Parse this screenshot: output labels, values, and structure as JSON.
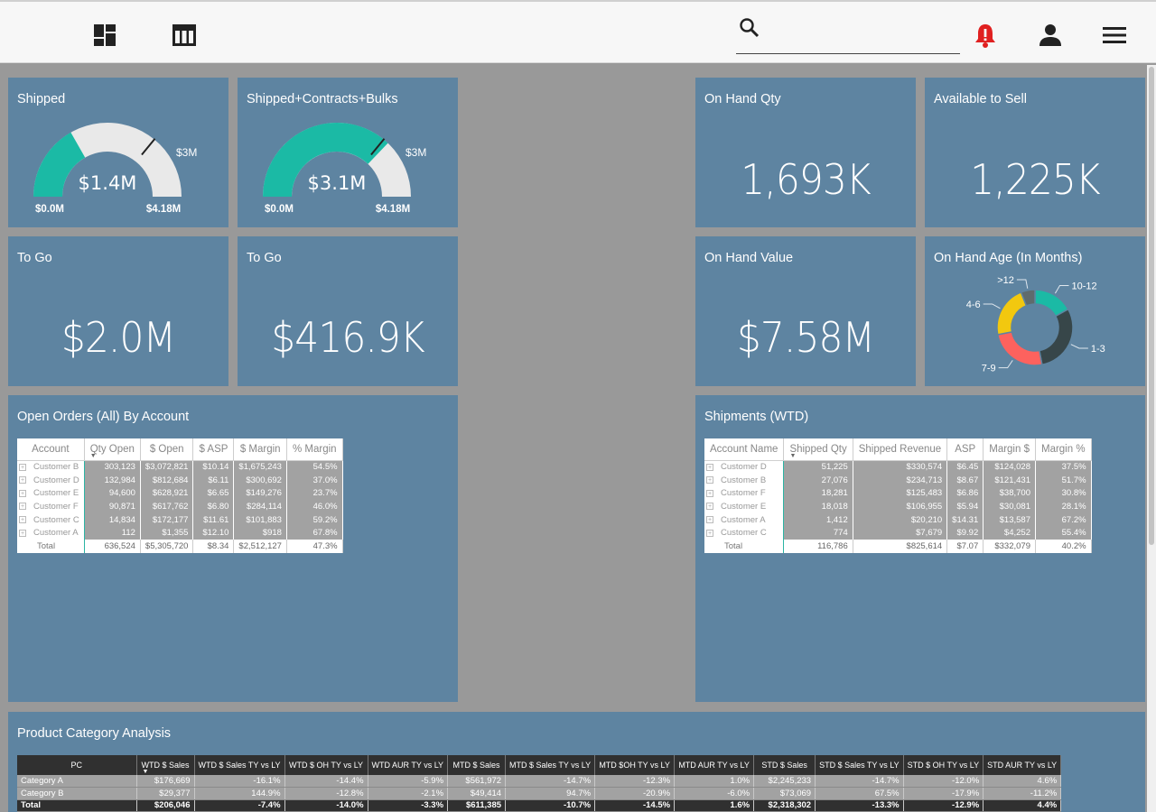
{
  "topbar": {
    "icons": [
      "dashboard-icon",
      "table-icon",
      "search-icon",
      "bell-alert-icon",
      "user-icon",
      "menu-icon"
    ],
    "search_placeholder": "",
    "alert_color": "#e02020"
  },
  "tiles": {
    "shipped": {
      "title": "Shipped",
      "value": "$1.4M",
      "target": "$3M",
      "min": "$0.0M",
      "max": "$4.18M",
      "fraction": 0.335,
      "target_fraction": 0.718
    },
    "shipped_contracts": {
      "title": "Shipped+Contracts+Bulks",
      "value": "$3.1M",
      "target": "$3M",
      "min": "$0.0M",
      "max": "$4.18M",
      "fraction": 0.742,
      "target_fraction": 0.718
    },
    "on_hand_qty": {
      "title": "On Hand Qty",
      "value": "1,693K"
    },
    "available_to_sell": {
      "title": "Available to Sell",
      "value": "1,225K"
    },
    "to_go_1": {
      "title": "To Go",
      "value": "$2.0M"
    },
    "to_go_2": {
      "title": "To Go",
      "value": "$416.9K"
    },
    "on_hand_value": {
      "title": "On Hand Value",
      "value": "$7.58M"
    },
    "on_hand_age": {
      "title": "On Hand Age (In Months)",
      "segments": [
        {
          "label": "10-12",
          "value": 17,
          "color": "#1bbaa5"
        },
        {
          "label": "1-3",
          "value": 30,
          "color": "#374649"
        },
        {
          "label": "7-9",
          "value": 25,
          "color": "#fd625e"
        },
        {
          "label": "4-6",
          "value": 22,
          "color": "#f2c80f"
        },
        {
          "label": ">12",
          "value": 6,
          "color": "#5f6b6d"
        }
      ]
    }
  },
  "open_orders": {
    "title": "Open Orders (All) By Account",
    "columns": [
      "Account",
      "Qty Open",
      "$ Open",
      "$ ASP",
      "$ Margin",
      "% Margin"
    ],
    "rows": [
      [
        "Customer B",
        "303,123",
        "$3,072,821",
        "$10.14",
        "$1,675,243",
        "54.5%"
      ],
      [
        "Customer D",
        "132,984",
        "$812,684",
        "$6.11",
        "$300,692",
        "37.0%"
      ],
      [
        "Customer E",
        "94,600",
        "$628,921",
        "$6.65",
        "$149,276",
        "23.7%"
      ],
      [
        "Customer F",
        "90,871",
        "$617,762",
        "$6.80",
        "$284,114",
        "46.0%"
      ],
      [
        "Customer C",
        "14,834",
        "$172,177",
        "$11.61",
        "$101,883",
        "59.2%"
      ],
      [
        "Customer A",
        "112",
        "$1,355",
        "$12.10",
        "$918",
        "67.8%"
      ]
    ],
    "total": [
      "Total",
      "636,524",
      "$5,305,720",
      "$8.34",
      "$2,512,127",
      "47.3%"
    ]
  },
  "shipments": {
    "title": "Shipments (WTD)",
    "columns": [
      "Account Name",
      "Shipped Qty",
      "Shipped Revenue",
      "ASP",
      "Margin $",
      "Margin %"
    ],
    "rows": [
      [
        "Customer D",
        "51,225",
        "$330,574",
        "$6.45",
        "$124,028",
        "37.5%"
      ],
      [
        "Customer B",
        "27,076",
        "$234,713",
        "$8.67",
        "$121,431",
        "51.7%"
      ],
      [
        "Customer F",
        "18,281",
        "$125,483",
        "$6.86",
        "$38,700",
        "30.8%"
      ],
      [
        "Customer E",
        "18,018",
        "$106,955",
        "$5.94",
        "$30,081",
        "28.1%"
      ],
      [
        "Customer A",
        "1,412",
        "$20,210",
        "$14.31",
        "$13,587",
        "67.2%"
      ],
      [
        "Customer C",
        "774",
        "$7,679",
        "$9.92",
        "$4,252",
        "55.4%"
      ]
    ],
    "total": [
      "Total",
      "116,786",
      "$825,614",
      "$7.07",
      "$332,079",
      "40.2%"
    ]
  },
  "product_category": {
    "title": "Product Category Analysis",
    "columns": [
      "PC",
      "WTD $ Sales",
      "WTD $ Sales TY vs LY",
      "WTD $ OH TY vs LY",
      "WTD AUR TY vs LY",
      "MTD $ Sales",
      "MTD $ Sales TY vs LY",
      "MTD $OH TY vs LY",
      "MTD AUR TY vs LY",
      "STD $ Sales",
      "STD $ Sales TY vs LY",
      "STD $ OH TY vs LY",
      "STD AUR TY vs LY"
    ],
    "rows": [
      [
        "Category A",
        "$176,669",
        "-16.1%",
        "-14.4%",
        "-5.9%",
        "$561,972",
        "-14.7%",
        "-12.3%",
        "1.0%",
        "$2,245,233",
        "-14.7%",
        "-12.0%",
        "4.6%"
      ],
      [
        "Category B",
        "$29,377",
        "144.9%",
        "-12.8%",
        "-2.1%",
        "$49,414",
        "94.7%",
        "-20.9%",
        "-6.0%",
        "$73,069",
        "67.5%",
        "-17.9%",
        "-11.2%"
      ]
    ],
    "total": [
      "Total",
      "$206,046",
      "-7.4%",
      "-14.0%",
      "-3.3%",
      "$611,385",
      "-10.7%",
      "-14.5%",
      "1.6%",
      "$2,318,302",
      "-13.3%",
      "-12.9%",
      "4.4%"
    ]
  }
}
